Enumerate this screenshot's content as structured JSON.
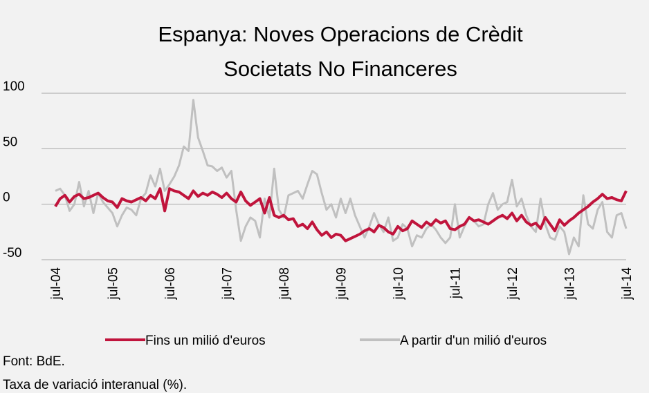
{
  "chart_data": {
    "type": "line",
    "title": [
      "Espanya: Noves Operacions de Crèdit",
      "Societats No Financeres"
    ],
    "categories": [
      "jul-04",
      null,
      null,
      null,
      null,
      null,
      null,
      null,
      null,
      null,
      null,
      null,
      "jul-05",
      null,
      null,
      null,
      null,
      null,
      null,
      null,
      null,
      null,
      null,
      null,
      "jul-06",
      null,
      null,
      null,
      null,
      null,
      null,
      null,
      null,
      null,
      null,
      null,
      "jul-07",
      null,
      null,
      null,
      null,
      null,
      null,
      null,
      null,
      null,
      null,
      null,
      "jul-08",
      null,
      null,
      null,
      null,
      null,
      null,
      null,
      null,
      null,
      null,
      null,
      "jul-09",
      null,
      null,
      null,
      null,
      null,
      null,
      null,
      null,
      null,
      null,
      null,
      "jul-10",
      null,
      null,
      null,
      null,
      null,
      null,
      null,
      null,
      null,
      null,
      null,
      "jul-11",
      null,
      null,
      null,
      null,
      null,
      null,
      null,
      null,
      null,
      null,
      null,
      "jul-12",
      null,
      null,
      null,
      null,
      null,
      null,
      null,
      null,
      null,
      null,
      null,
      "jul-13",
      null,
      null,
      null,
      null,
      null,
      null,
      null,
      null,
      null,
      null,
      null,
      "jul-14"
    ],
    "series": [
      {
        "name": "Fins un milió d'euros",
        "color": "#c0143c",
        "values": [
          -2,
          5,
          8,
          2,
          7,
          9,
          5,
          6,
          8,
          10,
          6,
          3,
          2,
          -3,
          5,
          3,
          2,
          4,
          6,
          3,
          8,
          5,
          14,
          -6,
          14,
          12,
          11,
          8,
          5,
          12,
          7,
          10,
          8,
          11,
          9,
          6,
          10,
          5,
          2,
          11,
          3,
          -1,
          2,
          5,
          -8,
          6,
          -10,
          -12,
          -10,
          -14,
          -13,
          -20,
          -18,
          -22,
          -16,
          -23,
          -28,
          -25,
          -30,
          -27,
          -28,
          -33,
          -31,
          -29,
          -27,
          -24,
          -22,
          -25,
          -19,
          -21,
          -25,
          -27,
          -20,
          -24,
          -22,
          -15,
          -18,
          -21,
          -16,
          -19,
          -14,
          -17,
          -15,
          -22,
          -23,
          -20,
          -18,
          -12,
          -15,
          -14,
          -16,
          -18,
          -15,
          -12,
          -10,
          -13,
          -8,
          -15,
          -10,
          -16,
          -19,
          -17,
          -22,
          -12,
          -18,
          -24,
          -14,
          -19,
          -15,
          -12,
          -8,
          -5,
          -2,
          2,
          5,
          9,
          5,
          6,
          4,
          3,
          12
        ]
      },
      {
        "name": "A partir d'un milió d'euros",
        "color": "#c0c0c0",
        "values": [
          12,
          14,
          8,
          -6,
          0,
          20,
          -2,
          12,
          -8,
          10,
          2,
          -3,
          -8,
          -20,
          -10,
          -3,
          -5,
          -10,
          5,
          10,
          26,
          16,
          32,
          12,
          18,
          25,
          35,
          52,
          48,
          94,
          60,
          48,
          35,
          34,
          30,
          33,
          24,
          30,
          -5,
          -33,
          -20,
          -12,
          -15,
          -30,
          5,
          -12,
          32,
          -5,
          -12,
          8,
          10,
          12,
          5,
          18,
          30,
          27,
          10,
          -5,
          0,
          -12,
          5,
          -8,
          5,
          -10,
          -20,
          -30,
          -20,
          -8,
          -18,
          -25,
          -12,
          -33,
          -30,
          -18,
          -22,
          -38,
          -28,
          -30,
          -22,
          -18,
          -23,
          -30,
          -35,
          -30,
          0,
          -30,
          -20,
          -12,
          -15,
          -20,
          -18,
          0,
          10,
          -5,
          0,
          2,
          22,
          -2,
          5,
          -10,
          -20,
          -25,
          5,
          -18,
          -30,
          -32,
          -20,
          -25,
          -45,
          -30,
          -38,
          8,
          -18,
          -22,
          -5,
          2,
          -25,
          -30,
          -10,
          -8,
          -22
        ]
      }
    ],
    "ylim": [
      -50,
      100
    ],
    "yticks": [
      -50,
      0,
      50,
      100
    ],
    "grid": true,
    "notes": [
      "Font: BdE.",
      "Taxa de variació interanual (%)."
    ]
  }
}
